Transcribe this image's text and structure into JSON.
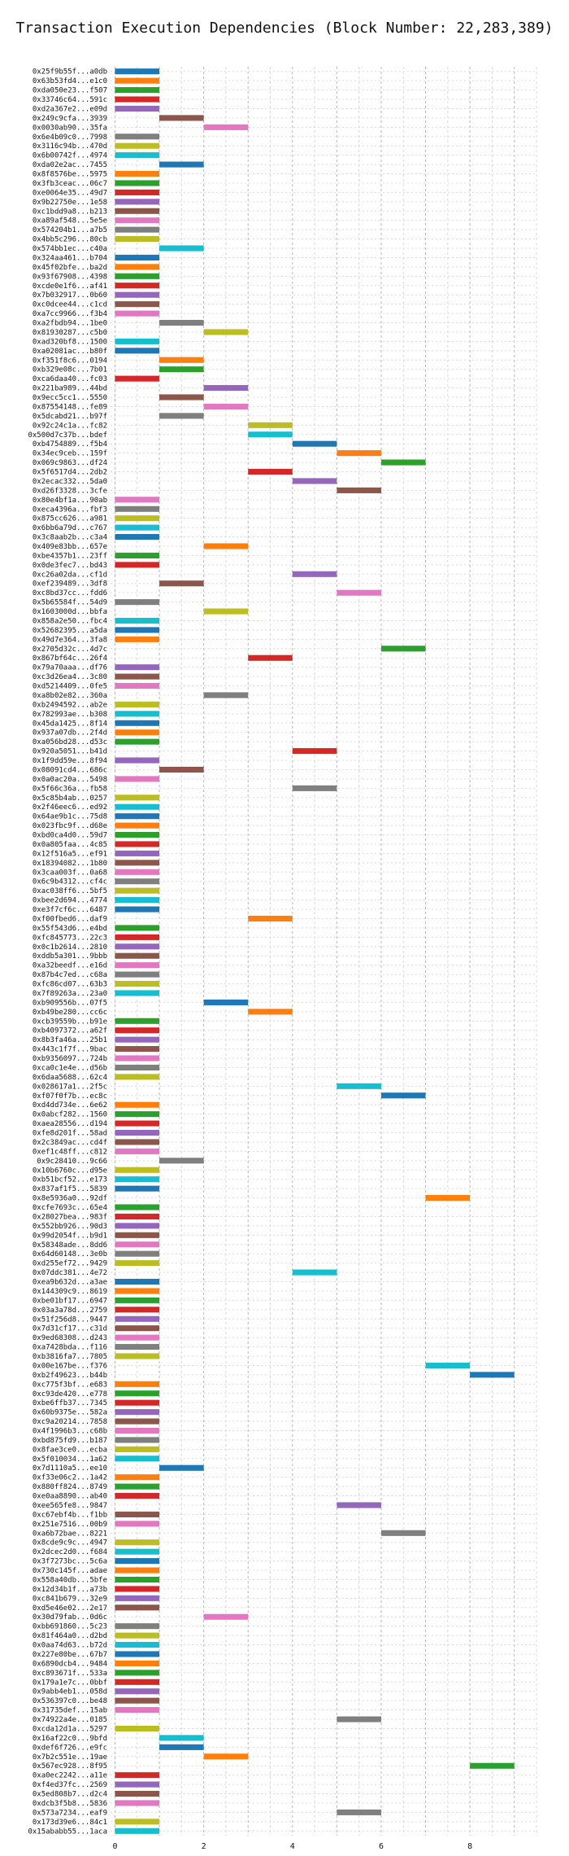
{
  "chart_data": {
    "type": "bar",
    "orientation": "horizontal-gantt",
    "title": "Transaction Execution Dependencies (Block Number: 22,283,389)",
    "xlabel": "",
    "ylabel": "",
    "xlim": [
      -0.1,
      9.5
    ],
    "x_ticks": [
      0,
      2,
      4,
      6,
      8
    ],
    "grid": true,
    "legend": "none",
    "palette": [
      "#1f77b4",
      "#ff7f0e",
      "#2ca02c",
      "#d62728",
      "#9467bd",
      "#8c564b",
      "#e377c2",
      "#7f7f7f",
      "#bcbd22",
      "#17becf"
    ],
    "transactions": [
      {
        "label": "0x25f9b55f...a0db",
        "start": 0
      },
      {
        "label": "0x63b53fd4...e1c0",
        "start": 0
      },
      {
        "label": "0xda050e23...f507",
        "start": 0
      },
      {
        "label": "0x33746c64...591c",
        "start": 0
      },
      {
        "label": "0xd2a367e2...e09d",
        "start": 0
      },
      {
        "label": "0x249c9cfa...3939",
        "start": 1
      },
      {
        "label": "0x0030ab90...35fa",
        "start": 2
      },
      {
        "label": "0x6e4b09c0...7998",
        "start": 0
      },
      {
        "label": "0x3116c94b...470d",
        "start": 0
      },
      {
        "label": "0x6b00742f...4974",
        "start": 0
      },
      {
        "label": "0xda02e2ac...7455",
        "start": 1
      },
      {
        "label": "0x8f8576be...5975",
        "start": 0
      },
      {
        "label": "0x3fb3ceac...06c7",
        "start": 0
      },
      {
        "label": "0xe0064e35...49d7",
        "start": 0
      },
      {
        "label": "0x9b22750e...1e58",
        "start": 0
      },
      {
        "label": "0xc1bdd9a8...b213",
        "start": 0
      },
      {
        "label": "0xa89af548...5e5e",
        "start": 0
      },
      {
        "label": "0x574204b1...a7b5",
        "start": 0
      },
      {
        "label": "0x4bb5c296...80cb",
        "start": 0
      },
      {
        "label": "0x574bb1ec...c40a",
        "start": 1
      },
      {
        "label": "0x324aa461...b704",
        "start": 0
      },
      {
        "label": "0x45f02bfe...ba2d",
        "start": 0
      },
      {
        "label": "0x93f67908...4398",
        "start": 0
      },
      {
        "label": "0xcde0e1f6...af41",
        "start": 0
      },
      {
        "label": "0x7b032917...0b60",
        "start": 0
      },
      {
        "label": "0xc0dcee44...c1cd",
        "start": 0
      },
      {
        "label": "0xa7cc9966...f3b4",
        "start": 0
      },
      {
        "label": "0xa2fbdb94...1be0",
        "start": 1
      },
      {
        "label": "0x81930287...c5b0",
        "start": 2
      },
      {
        "label": "0xad320bf8...1500",
        "start": 0
      },
      {
        "label": "0xa02081ac...b80f",
        "start": 0
      },
      {
        "label": "0xf351f8c6...0194",
        "start": 1
      },
      {
        "label": "0xb329e08c...7b01",
        "start": 1
      },
      {
        "label": "0xca6daa40...fc03",
        "start": 0
      },
      {
        "label": "0x221ba989...44bd",
        "start": 2
      },
      {
        "label": "0x9ecc5cc1...5550",
        "start": 1
      },
      {
        "label": "0x87554148...fe89",
        "start": 2
      },
      {
        "label": "0x5dcabd21...b97f",
        "start": 1
      },
      {
        "label": "0x92c24c1a...fc82",
        "start": 3
      },
      {
        "label": "0x500d7c37b...bdef",
        "start": 3
      },
      {
        "label": "0xb4754889...f5b4",
        "start": 4
      },
      {
        "label": "0x34ec9ceb...159f",
        "start": 5
      },
      {
        "label": "0x069c9863...df24",
        "start": 6
      },
      {
        "label": "0x5f6517d4...2db2",
        "start": 3
      },
      {
        "label": "0x2ecac332...5da0",
        "start": 4
      },
      {
        "label": "0xd26f3328...3cfe",
        "start": 5
      },
      {
        "label": "0x80e4bf1a...90ab",
        "start": 0
      },
      {
        "label": "0xeca4396a...fbf3",
        "start": 0
      },
      {
        "label": "0x875cc626...a981",
        "start": 0
      },
      {
        "label": "0x6bb6a79d...c767",
        "start": 0
      },
      {
        "label": "0x3c8aab2b...c3a4",
        "start": 0
      },
      {
        "label": "0x409e83bb...657e",
        "start": 2
      },
      {
        "label": "0xbe4357b1...23ff",
        "start": 0
      },
      {
        "label": "0x0de3fec7...bd43",
        "start": 0
      },
      {
        "label": "0xc26a02da...cf1d",
        "start": 4
      },
      {
        "label": "0xef239489...3df8",
        "start": 1
      },
      {
        "label": "0xc8bd37cc...fdd6",
        "start": 5
      },
      {
        "label": "0x5b65584f...54d9",
        "start": 0
      },
      {
        "label": "0x1603000d...bbfa",
        "start": 2
      },
      {
        "label": "0x858a2e50...fbc4",
        "start": 0
      },
      {
        "label": "0x52682395...a5da",
        "start": 0
      },
      {
        "label": "0x49d7e364...3fa8",
        "start": 0
      },
      {
        "label": "0x2705d32c...4d7c",
        "start": 6
      },
      {
        "label": "0x867bf64c...26f4",
        "start": 3
      },
      {
        "label": "0x79a70aaa...df76",
        "start": 0
      },
      {
        "label": "0xc3d26ea4...3c80",
        "start": 0
      },
      {
        "label": "0xd5214409...0fe5",
        "start": 0
      },
      {
        "label": "0xa8b02e82...360a",
        "start": 2
      },
      {
        "label": "0xb2494592...ab2e",
        "start": 0
      },
      {
        "label": "0x782993ae...b308",
        "start": 0
      },
      {
        "label": "0x45da1425...8f14",
        "start": 0
      },
      {
        "label": "0x937a07db...2f4d",
        "start": 0
      },
      {
        "label": "0xa056bd28...d53c",
        "start": 0
      },
      {
        "label": "0x920a5051...b41d",
        "start": 4
      },
      {
        "label": "0x1f9dd59e...8f94",
        "start": 0
      },
      {
        "label": "0x08091cd4...686c",
        "start": 1
      },
      {
        "label": "0x0a0ac20a...5498",
        "start": 0
      },
      {
        "label": "0x5f66c36a...fb58",
        "start": 4
      },
      {
        "label": "0x5c85b4ab...0257",
        "start": 0
      },
      {
        "label": "0x2f46eec6...ed92",
        "start": 0
      },
      {
        "label": "0x64ae9b1c...75d8",
        "start": 0
      },
      {
        "label": "0x023fbc9f...d68e",
        "start": 0
      },
      {
        "label": "0xbd0ca4d0...59d7",
        "start": 0
      },
      {
        "label": "0x0a805faa...4c85",
        "start": 0
      },
      {
        "label": "0x12f516a5...ef91",
        "start": 0
      },
      {
        "label": "0x18394082...1b80",
        "start": 0
      },
      {
        "label": "0x3caa003f...0a68",
        "start": 0
      },
      {
        "label": "0x6c9b4312...cf4c",
        "start": 0
      },
      {
        "label": "0xac038ff6...5bf5",
        "start": 0
      },
      {
        "label": "0xbee2d694...4774",
        "start": 0
      },
      {
        "label": "0xe3f7cf6c...6487",
        "start": 0
      },
      {
        "label": "0xf00fbed6...daf9",
        "start": 3
      },
      {
        "label": "0x55f543d6...e4bd",
        "start": 0
      },
      {
        "label": "0xfc845773...22c3",
        "start": 0
      },
      {
        "label": "0x0c1b2614...2810",
        "start": 0
      },
      {
        "label": "0xddb5a301...9bbb",
        "start": 0
      },
      {
        "label": "0xa32beedf...e16d",
        "start": 0
      },
      {
        "label": "0x87b4c7ed...c68a",
        "start": 0
      },
      {
        "label": "0xfc86cd07...63b3",
        "start": 0
      },
      {
        "label": "0x7f89263a...23a0",
        "start": 0
      },
      {
        "label": "0xb909556b...07f5",
        "start": 2
      },
      {
        "label": "0xb49be280...cc6c",
        "start": 3
      },
      {
        "label": "0xcb39559b...b91e",
        "start": 0
      },
      {
        "label": "0xb4097372...a62f",
        "start": 0
      },
      {
        "label": "0x8b3fa46a...25b1",
        "start": 0
      },
      {
        "label": "0x443c1f7f...9bac",
        "start": 0
      },
      {
        "label": "0xb9356097...724b",
        "start": 0
      },
      {
        "label": "0xca0c1e4e...d56b",
        "start": 0
      },
      {
        "label": "0x6daa5688...62c4",
        "start": 0
      },
      {
        "label": "0x028617a1...2f5c",
        "start": 5
      },
      {
        "label": "0xf07f0f7b...ec8c",
        "start": 6
      },
      {
        "label": "0xd4dd734e...6e62",
        "start": 0
      },
      {
        "label": "0x0abcf282...1560",
        "start": 0
      },
      {
        "label": "0xaea28556...d194",
        "start": 0
      },
      {
        "label": "0xfe8d201f...58ad",
        "start": 0
      },
      {
        "label": "0x2c3849ac...cd4f",
        "start": 0
      },
      {
        "label": "0xef1c48ff...c812",
        "start": 0
      },
      {
        "label": "0x9c28410...9c66",
        "start": 1
      },
      {
        "label": "0x10b6760c...d95e",
        "start": 0
      },
      {
        "label": "0xb51bcf52...e173",
        "start": 0
      },
      {
        "label": "0x837af1f5...5839",
        "start": 0
      },
      {
        "label": "0x8e5936a0...92df",
        "start": 7
      },
      {
        "label": "0xcfe7693c...65e4",
        "start": 0
      },
      {
        "label": "0x28027bea...983f",
        "start": 0
      },
      {
        "label": "0x552bb926...90d3",
        "start": 0
      },
      {
        "label": "0x99d2054f...b9d1",
        "start": 0
      },
      {
        "label": "0x58348ade...8dd6",
        "start": 0
      },
      {
        "label": "0x64d60148...3e0b",
        "start": 0
      },
      {
        "label": "0xd255ef72...9429",
        "start": 0
      },
      {
        "label": "0x07ddc381...4e72",
        "start": 4
      },
      {
        "label": "0xea9b632d...a3ae",
        "start": 0
      },
      {
        "label": "0x144309c9...8619",
        "start": 0
      },
      {
        "label": "0xbe01bf17...6947",
        "start": 0
      },
      {
        "label": "0x03a3a78d...2759",
        "start": 0
      },
      {
        "label": "0x51f256d8...9447",
        "start": 0
      },
      {
        "label": "0x7d31cf17...c31d",
        "start": 0
      },
      {
        "label": "0x9ed68308...d243",
        "start": 0
      },
      {
        "label": "0xa7428bda...f116",
        "start": 0
      },
      {
        "label": "0xb3816fa7...7805",
        "start": 0
      },
      {
        "label": "0x00e167be...f376",
        "start": 7
      },
      {
        "label": "0xb2f49623...b44b",
        "start": 8
      },
      {
        "label": "0xc775f3bf...e683",
        "start": 0
      },
      {
        "label": "0xc93de420...e778",
        "start": 0
      },
      {
        "label": "0xbe6ffb37...7345",
        "start": 0
      },
      {
        "label": "0x60b9375e...582a",
        "start": 0
      },
      {
        "label": "0xc9a20214...7858",
        "start": 0
      },
      {
        "label": "0x4f1996b3...c68b",
        "start": 0
      },
      {
        "label": "0xbd875fd9...b187",
        "start": 0
      },
      {
        "label": "0x8fae3ce0...ecba",
        "start": 0
      },
      {
        "label": "0x5f010034...1a62",
        "start": 0
      },
      {
        "label": "0x7d1110a5...ee10",
        "start": 1
      },
      {
        "label": "0xf33e06c2...1a42",
        "start": 0
      },
      {
        "label": "0x880ff824...8749",
        "start": 0
      },
      {
        "label": "0xe0aa8890...ab40",
        "start": 0
      },
      {
        "label": "0xee565fe8...9847",
        "start": 5
      },
      {
        "label": "0xc67ebf4b...f1bb",
        "start": 0
      },
      {
        "label": "0x251e7516...00b9",
        "start": 0
      },
      {
        "label": "0xa6b72bae...8221",
        "start": 6
      },
      {
        "label": "0x8cde9c9c...4947",
        "start": 0
      },
      {
        "label": "0x2dcec2d0...f684",
        "start": 0
      },
      {
        "label": "0x3f7273bc...5c6a",
        "start": 0
      },
      {
        "label": "0x730c145f...adae",
        "start": 0
      },
      {
        "label": "0x558a40db...5bfe",
        "start": 0
      },
      {
        "label": "0x12d34b1f...a73b",
        "start": 0
      },
      {
        "label": "0xc841b679...32e9",
        "start": 0
      },
      {
        "label": "0xd5e46e02...2e17",
        "start": 0
      },
      {
        "label": "0x30d79fab...0d6c",
        "start": 2
      },
      {
        "label": "0xbb691860...5c23",
        "start": 0
      },
      {
        "label": "0x81f464a0...d2bd",
        "start": 0
      },
      {
        "label": "0x0aa74d63...b72d",
        "start": 0
      },
      {
        "label": "0x227e80be...67b7",
        "start": 0
      },
      {
        "label": "0x6890dcb4...9484",
        "start": 0
      },
      {
        "label": "0xc893671f...533a",
        "start": 0
      },
      {
        "label": "0x179a1e7c...0bbf",
        "start": 0
      },
      {
        "label": "0x9abb4eb1...058d",
        "start": 0
      },
      {
        "label": "0x536397c0...be48",
        "start": 0
      },
      {
        "label": "0x31735def...15ab",
        "start": 0
      },
      {
        "label": "0x74922a4e...0185",
        "start": 5
      },
      {
        "label": "0xcda12d1a...5297",
        "start": 0
      },
      {
        "label": "0x16af22c0...9bfd",
        "start": 1
      },
      {
        "label": "0xdef6f726...e9fc",
        "start": 1
      },
      {
        "label": "0x7b2c551e...19ae",
        "start": 2
      },
      {
        "label": "0x567ec928...8f95",
        "start": 8
      },
      {
        "label": "0xa0ec2242...a11e",
        "start": 0
      },
      {
        "label": "0xf4ed37fc...2569",
        "start": 0
      },
      {
        "label": "0x5ed808b7...d2c4",
        "start": 0
      },
      {
        "label": "0xdcb3f5b8...5836",
        "start": 0
      },
      {
        "label": "0x573a7234...eaf9",
        "start": 5
      },
      {
        "label": "0x173d39e6...84c1",
        "start": 0
      },
      {
        "label": "0x15ababb55...1aca",
        "start": 0
      }
    ]
  }
}
